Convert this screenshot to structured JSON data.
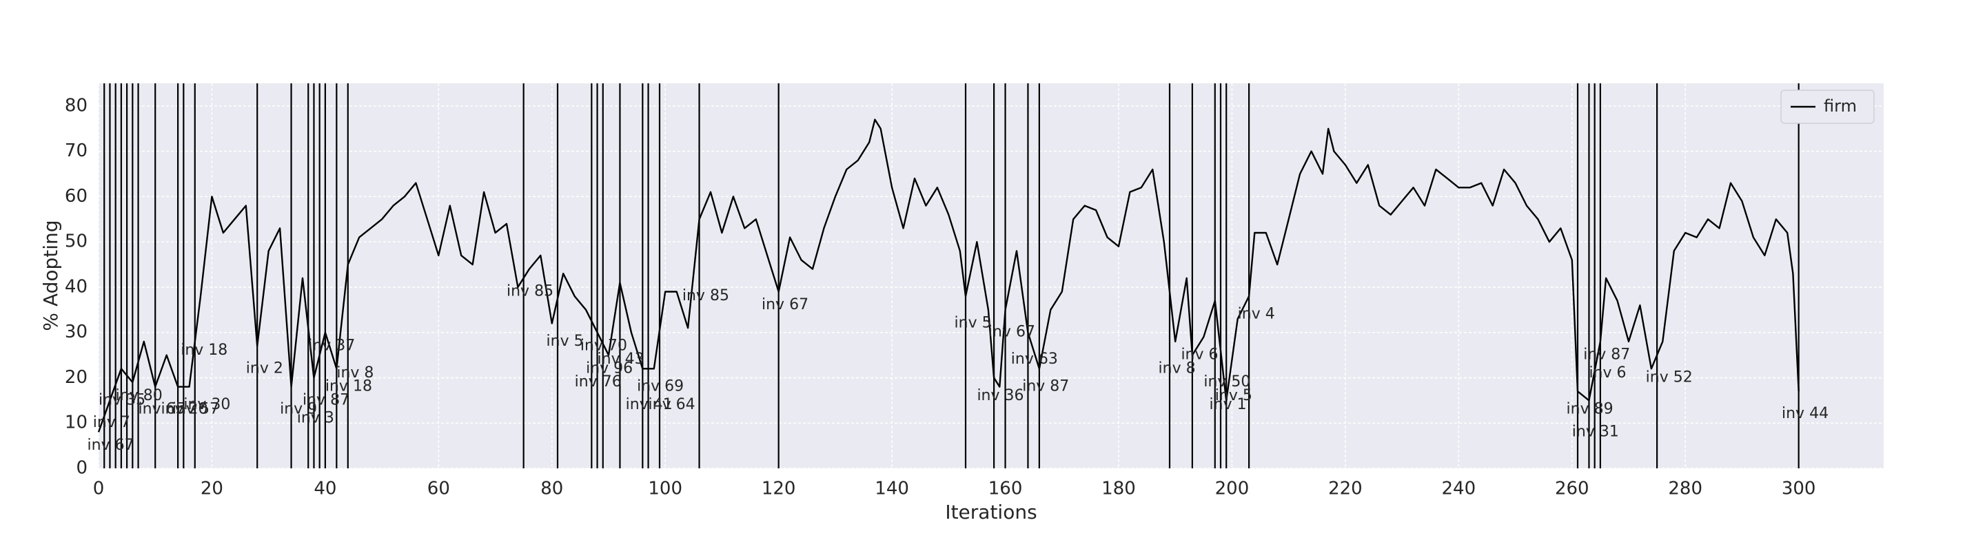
{
  "chart_data": {
    "type": "line",
    "xlabel": "Iterations",
    "ylabel": "% Adopting",
    "xlim": [
      0,
      315
    ],
    "ylim": [
      0,
      85
    ],
    "xticks": [
      0,
      20,
      40,
      60,
      80,
      100,
      120,
      140,
      160,
      180,
      200,
      220,
      240,
      260,
      280,
      300
    ],
    "yticks": [
      0,
      10,
      20,
      30,
      40,
      50,
      60,
      70,
      80
    ],
    "grid": true,
    "legend": "upper right",
    "series": [
      {
        "name": "firm",
        "color": "#000000",
        "x": [
          0,
          2,
          4,
          6,
          8,
          10,
          12,
          14,
          16,
          18,
          20,
          22,
          24,
          26,
          28,
          30,
          32,
          34,
          36,
          38,
          40,
          42,
          44,
          46,
          48,
          50,
          52,
          54,
          56,
          58,
          60,
          62,
          64,
          66,
          68,
          70,
          72,
          74,
          76,
          78,
          80,
          82,
          84,
          86,
          88,
          90,
          92,
          94,
          96,
          98,
          100,
          102,
          104,
          106,
          108,
          110,
          112,
          114,
          116,
          118,
          120,
          122,
          124,
          126,
          128,
          130,
          132,
          134,
          136,
          137,
          138,
          140,
          142,
          144,
          146,
          148,
          150,
          152,
          153,
          155,
          157,
          158,
          159,
          160,
          162,
          164,
          166,
          168,
          170,
          172,
          174,
          176,
          178,
          180,
          182,
          184,
          186,
          188,
          190,
          192,
          193,
          195,
          197,
          199,
          201,
          203,
          204,
          206,
          208,
          210,
          212,
          214,
          216,
          217,
          218,
          220,
          222,
          224,
          226,
          228,
          230,
          232,
          234,
          236,
          238,
          240,
          242,
          244,
          246,
          248,
          250,
          252,
          254,
          256,
          258,
          260,
          261,
          263,
          265,
          266,
          268,
          270,
          272,
          274,
          276,
          278,
          280,
          282,
          284,
          286,
          288,
          290,
          292,
          294,
          296,
          298,
          299,
          300
        ],
        "values": [
          8,
          15,
          22,
          19,
          28,
          18,
          25,
          18,
          18,
          38,
          60,
          52,
          55,
          58,
          27,
          48,
          53,
          18,
          42,
          20,
          30,
          22,
          45,
          51,
          53,
          55,
          58,
          60,
          63,
          55,
          47,
          58,
          47,
          45,
          61,
          52,
          54,
          40,
          44,
          47,
          32,
          43,
          38,
          35,
          30,
          25,
          41,
          30,
          22,
          22,
          39,
          39,
          31,
          55,
          61,
          52,
          60,
          53,
          55,
          47,
          39,
          51,
          46,
          44,
          53,
          60,
          66,
          68,
          72,
          77,
          75,
          62,
          53,
          64,
          58,
          62,
          56,
          48,
          38,
          50,
          35,
          20,
          18,
          35,
          48,
          30,
          22,
          35,
          39,
          55,
          58,
          57,
          51,
          49,
          61,
          62,
          66,
          50,
          28,
          42,
          25,
          29,
          37,
          15,
          33,
          38,
          52,
          52,
          45,
          55,
          65,
          70,
          65,
          75,
          70,
          67,
          63,
          67,
          58,
          56,
          59,
          62,
          58,
          66,
          64,
          62,
          62,
          63,
          58,
          66,
          63,
          58,
          55,
          50,
          53,
          46,
          17,
          15,
          28,
          42,
          37,
          28,
          36,
          22,
          28,
          48,
          52,
          51,
          55,
          53,
          63,
          59,
          51,
          47,
          55,
          52,
          43,
          17
        ]
      }
    ],
    "vlines": [
      1,
      2,
      3,
      4,
      5,
      6,
      7,
      10,
      14,
      15,
      17,
      28,
      34,
      37,
      38,
      39,
      40,
      42,
      44,
      75,
      81,
      87,
      88,
      89,
      92,
      96,
      97,
      99,
      106,
      120,
      153,
      158,
      160,
      164,
      166,
      189,
      193,
      197,
      198,
      199,
      203,
      261,
      263,
      264,
      265,
      275,
      300
    ],
    "annotations": [
      {
        "x": -2,
        "y": 5,
        "label": "inv 67"
      },
      {
        "x": -1,
        "y": 10,
        "label": "inv 7"
      },
      {
        "x": 0,
        "y": 15,
        "label": "inv 35"
      },
      {
        "x": 3,
        "y": 16,
        "label": "inv 80"
      },
      {
        "x": 7,
        "y": 13,
        "label": "inv 65"
      },
      {
        "x": 11,
        "y": 13,
        "label": "inv 20"
      },
      {
        "x": 13,
        "y": 13,
        "label": "inv 57"
      },
      {
        "x": 15,
        "y": 14,
        "label": "inv 30"
      },
      {
        "x": 14.5,
        "y": 26,
        "label": "inv 18"
      },
      {
        "x": 26,
        "y": 22,
        "label": "inv 2"
      },
      {
        "x": 32,
        "y": 13,
        "label": "inv 9"
      },
      {
        "x": 35,
        "y": 11,
        "label": "inv 3"
      },
      {
        "x": 36,
        "y": 15,
        "label": "inv 87"
      },
      {
        "x": 40,
        "y": 18,
        "label": "inv 18"
      },
      {
        "x": 37,
        "y": 27,
        "label": "inv 37"
      },
      {
        "x": 42,
        "y": 21,
        "label": "inv 8"
      },
      {
        "x": 72,
        "y": 39,
        "label": "inv 85"
      },
      {
        "x": 79,
        "y": 28,
        "label": "inv 5"
      },
      {
        "x": 85,
        "y": 27,
        "label": "inv 70"
      },
      {
        "x": 88,
        "y": 24,
        "label": "inv 43"
      },
      {
        "x": 86,
        "y": 22,
        "label": "inv 96"
      },
      {
        "x": 84,
        "y": 19,
        "label": "inv 76"
      },
      {
        "x": 95,
        "y": 18,
        "label": "inv 69"
      },
      {
        "x": 93,
        "y": 14,
        "label": "inv 41"
      },
      {
        "x": 97,
        "y": 14,
        "label": "inv 64"
      },
      {
        "x": 103,
        "y": 38,
        "label": "inv 85"
      },
      {
        "x": 117,
        "y": 36,
        "label": "inv 67"
      },
      {
        "x": 151,
        "y": 32,
        "label": "inv 5"
      },
      {
        "x": 157,
        "y": 30,
        "label": "inv 67"
      },
      {
        "x": 161,
        "y": 24,
        "label": "inv 63"
      },
      {
        "x": 155,
        "y": 16,
        "label": "inv 36"
      },
      {
        "x": 163,
        "y": 18,
        "label": "inv 87"
      },
      {
        "x": 191,
        "y": 25,
        "label": "inv 6"
      },
      {
        "x": 187,
        "y": 22,
        "label": "inv 8"
      },
      {
        "x": 195,
        "y": 19,
        "label": "inv 50"
      },
      {
        "x": 197,
        "y": 16,
        "label": "inv 5"
      },
      {
        "x": 196,
        "y": 14,
        "label": "inv 1"
      },
      {
        "x": 201,
        "y": 34,
        "label": "inv 4"
      },
      {
        "x": 262,
        "y": 25,
        "label": "inv 87"
      },
      {
        "x": 263,
        "y": 21,
        "label": "inv 6"
      },
      {
        "x": 273,
        "y": 20,
        "label": "inv 52"
      },
      {
        "x": 259,
        "y": 13,
        "label": "inv 89"
      },
      {
        "x": 260,
        "y": 8,
        "label": "inv 31"
      },
      {
        "x": 297,
        "y": 12,
        "label": "inv 44"
      }
    ]
  }
}
